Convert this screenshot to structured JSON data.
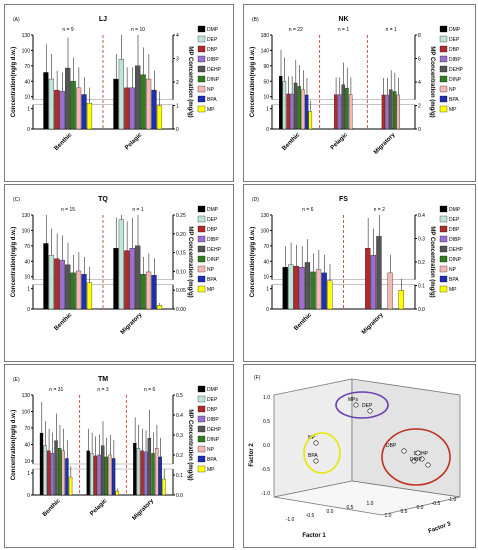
{
  "legend": [
    {
      "name": "DMP",
      "color": "#000000"
    },
    {
      "name": "DEP",
      "color": "#bfe3d9"
    },
    {
      "name": "DBP",
      "color": "#b02b2b"
    },
    {
      "name": "DIBP",
      "color": "#9b6fcf"
    },
    {
      "name": "DEHP",
      "color": "#555555"
    },
    {
      "name": "DINP",
      "color": "#2f7d1f"
    },
    {
      "name": "NP",
      "color": "#f2b8b4"
    },
    {
      "name": "BPA",
      "color": "#1e2fb0"
    },
    {
      "name": "MP",
      "color": "#ffff00"
    }
  ],
  "chart_data": [
    {
      "type": "bar",
      "panel_label": "(A)",
      "title": "LJ",
      "ylabel": "Concentration(ng/g d.w.)",
      "y2label": "MP Concentration (mg/g)",
      "categories": [
        "Benthic",
        "Pelagic"
      ],
      "n_labels": [
        "n = 9",
        "n = 10"
      ],
      "ylim": [
        0,
        140
      ],
      "y_ticks": [
        "0",
        "1",
        "10",
        "40",
        "70",
        "100",
        "130"
      ],
      "y2lim": [
        0,
        4
      ],
      "y2_ticks": [
        "0",
        "1",
        "2",
        "3",
        "4"
      ],
      "series": [
        {
          "name": "DMP",
          "values": [
            55,
            40
          ]
        },
        {
          "name": "DEP",
          "values": [
            40,
            85
          ]
        },
        {
          "name": "DBP",
          "values": [
            15,
            20
          ]
        },
        {
          "name": "DIBP",
          "values": [
            12,
            20
          ]
        },
        {
          "name": "DEHP",
          "values": [
            65,
            70
          ]
        },
        {
          "name": "DINP",
          "values": [
            35,
            50
          ]
        },
        {
          "name": "NP",
          "values": [
            20,
            40
          ]
        },
        {
          "name": "BPA",
          "values": [
            5,
            15
          ]
        }
      ],
      "mp_values": [
        1.1,
        1.0
      ]
    },
    {
      "type": "bar",
      "panel_label": "(B)",
      "title": "NK",
      "ylabel": "Concentration(ng/g d.w.)",
      "y2label": "MP Concentration (mg/g)",
      "categories": [
        "Benthic",
        "Pelagic",
        "Migratory"
      ],
      "n_labels": [
        "n = 22",
        "n = 1",
        "n = 1"
      ],
      "ylim": [
        0,
        180
      ],
      "y_ticks": [
        "0",
        "1",
        "10",
        "50",
        "90",
        "140",
        "180"
      ],
      "y2lim": [
        0,
        8
      ],
      "y2_ticks": [
        "0",
        "2",
        "4",
        "6",
        "8"
      ],
      "series": [
        {
          "name": "DMP",
          "values": [
            60,
            0,
            0
          ]
        },
        {
          "name": "DEP",
          "values": [
            45,
            0,
            0
          ]
        },
        {
          "name": "DBP",
          "values": [
            8,
            6,
            5
          ]
        },
        {
          "name": "DIBP",
          "values": [
            8,
            6,
            5
          ]
        },
        {
          "name": "DEHP",
          "values": [
            40,
            35,
            20
          ]
        },
        {
          "name": "DINP",
          "values": [
            30,
            25,
            15
          ]
        },
        {
          "name": "NP",
          "values": [
            20,
            6,
            5
          ]
        },
        {
          "name": "BPA",
          "values": [
            5,
            0,
            0
          ]
        }
      ],
      "mp_values": [
        1.5,
        0,
        0
      ]
    },
    {
      "type": "bar",
      "panel_label": "(C)",
      "title": "TQ",
      "ylabel": "Concentration(ng/g d.w.)",
      "y2label": "MP Concentration (mg/g)",
      "categories": [
        "Benthic",
        "Migratory"
      ],
      "n_labels": [
        "n = 15",
        "n = 1"
      ],
      "ylim": [
        0,
        130
      ],
      "y_ticks": [
        "0",
        "1",
        "10",
        "40",
        "70",
        "100",
        "130"
      ],
      "y2lim": [
        0,
        0.25
      ],
      "y2_ticks": [
        "0.00",
        "0.05",
        "0.10",
        "0.15",
        "0.20",
        "0.25"
      ],
      "series": [
        {
          "name": "DMP",
          "values": [
            70,
            60
          ]
        },
        {
          "name": "DEP",
          "values": [
            45,
            120
          ]
        },
        {
          "name": "DBP",
          "values": [
            38,
            55
          ]
        },
        {
          "name": "DIBP",
          "values": [
            35,
            60
          ]
        },
        {
          "name": "DEHP",
          "values": [
            25,
            65
          ]
        },
        {
          "name": "DINP",
          "values": [
            8,
            5
          ]
        },
        {
          "name": "NP",
          "values": [
            12,
            10
          ]
        },
        {
          "name": "BPA",
          "values": [
            5,
            3
          ]
        }
      ],
      "mp_values": [
        0.07,
        0.01
      ]
    },
    {
      "type": "bar",
      "panel_label": "(D)",
      "title": "FS",
      "ylabel": "Concentration(ng/g d.w.)",
      "y2label": "MP Concentration (mg/g)",
      "categories": [
        "Benthic",
        "Migratory"
      ],
      "n_labels": [
        "n = 6",
        "n = 2"
      ],
      "ylim": [
        0,
        130
      ],
      "y_ticks": [
        "0",
        "1",
        "10",
        "40",
        "70",
        "100",
        "130"
      ],
      "y2lim": [
        0,
        0.4
      ],
      "y2_ticks": [
        "0.0",
        "0.1",
        "0.2",
        "0.3",
        "0.4"
      ],
      "series": [
        {
          "name": "DMP",
          "values": [
            20,
            0
          ]
        },
        {
          "name": "DEP",
          "values": [
            25,
            0
          ]
        },
        {
          "name": "DBP",
          "values": [
            22,
            60
          ]
        },
        {
          "name": "DIBP",
          "values": [
            20,
            45
          ]
        },
        {
          "name": "DEHP",
          "values": [
            30,
            85
          ]
        },
        {
          "name": "DINP",
          "values": [
            10,
            0
          ]
        },
        {
          "name": "NP",
          "values": [
            15,
            8
          ]
        },
        {
          "name": "BPA",
          "values": [
            8,
            0
          ]
        }
      ],
      "mp_values": [
        0.12,
        0.08
      ]
    },
    {
      "type": "bar",
      "panel_label": "(E)",
      "title": "TM",
      "ylabel": "Concentration(ng/g d.w.)",
      "y2label": "MP Concentration (mg/g)",
      "categories": [
        "Benthic",
        "Pelagic",
        "Migratory"
      ],
      "n_labels": [
        "n = 31",
        "n = 3",
        "n = 6"
      ],
      "ylim": [
        0,
        130
      ],
      "y_ticks": [
        "0",
        "1",
        "10",
        "40",
        "70",
        "100",
        "130"
      ],
      "y2lim": [
        0,
        0.5
      ],
      "y2_ticks": [
        "0.0",
        "0.1",
        "0.2",
        "0.3",
        "0.4",
        "0.5"
      ],
      "series": [
        {
          "name": "DMP",
          "values": [
            55,
            20,
            35
          ]
        },
        {
          "name": "DEP",
          "values": [
            30,
            15,
            25
          ]
        },
        {
          "name": "DBP",
          "values": [
            20,
            10,
            20
          ]
        },
        {
          "name": "DIBP",
          "values": [
            15,
            12,
            18
          ]
        },
        {
          "name": "DEHP",
          "values": [
            40,
            30,
            45
          ]
        },
        {
          "name": "DINP",
          "values": [
            25,
            8,
            15
          ]
        },
        {
          "name": "NP",
          "values": [
            20,
            12,
            25
          ]
        },
        {
          "name": "BPA",
          "values": [
            5,
            5,
            8
          ]
        }
      ],
      "mp_values": [
        0.09,
        0.02,
        0.08
      ]
    },
    {
      "type": "scatter",
      "panel_label": "(F)",
      "xlabel": "Factor 1",
      "ylabel": "Factor 2",
      "zlabel": "Factor 3",
      "ticks": [
        "1.0",
        "0.5",
        "0.0",
        "-0.5",
        "-1.0"
      ],
      "points": [
        {
          "label": "MPs"
        },
        {
          "label": "DEP"
        },
        {
          "label": "NP"
        },
        {
          "label": "BPA"
        },
        {
          "label": "DBP"
        },
        {
          "label": "DEHP"
        },
        {
          "label": ""
        },
        {
          "label": ""
        },
        {
          "label": "DIBP"
        }
      ],
      "groups": [
        {
          "members": [
            "MPs",
            "DEP"
          ],
          "color": "#6a3fb0"
        },
        {
          "members": [
            "NP",
            "BPA"
          ],
          "color": "#e6e600"
        },
        {
          "members": [
            "DBP",
            "DEHP",
            "DIBP"
          ],
          "color": "#c0301e"
        }
      ]
    }
  ]
}
